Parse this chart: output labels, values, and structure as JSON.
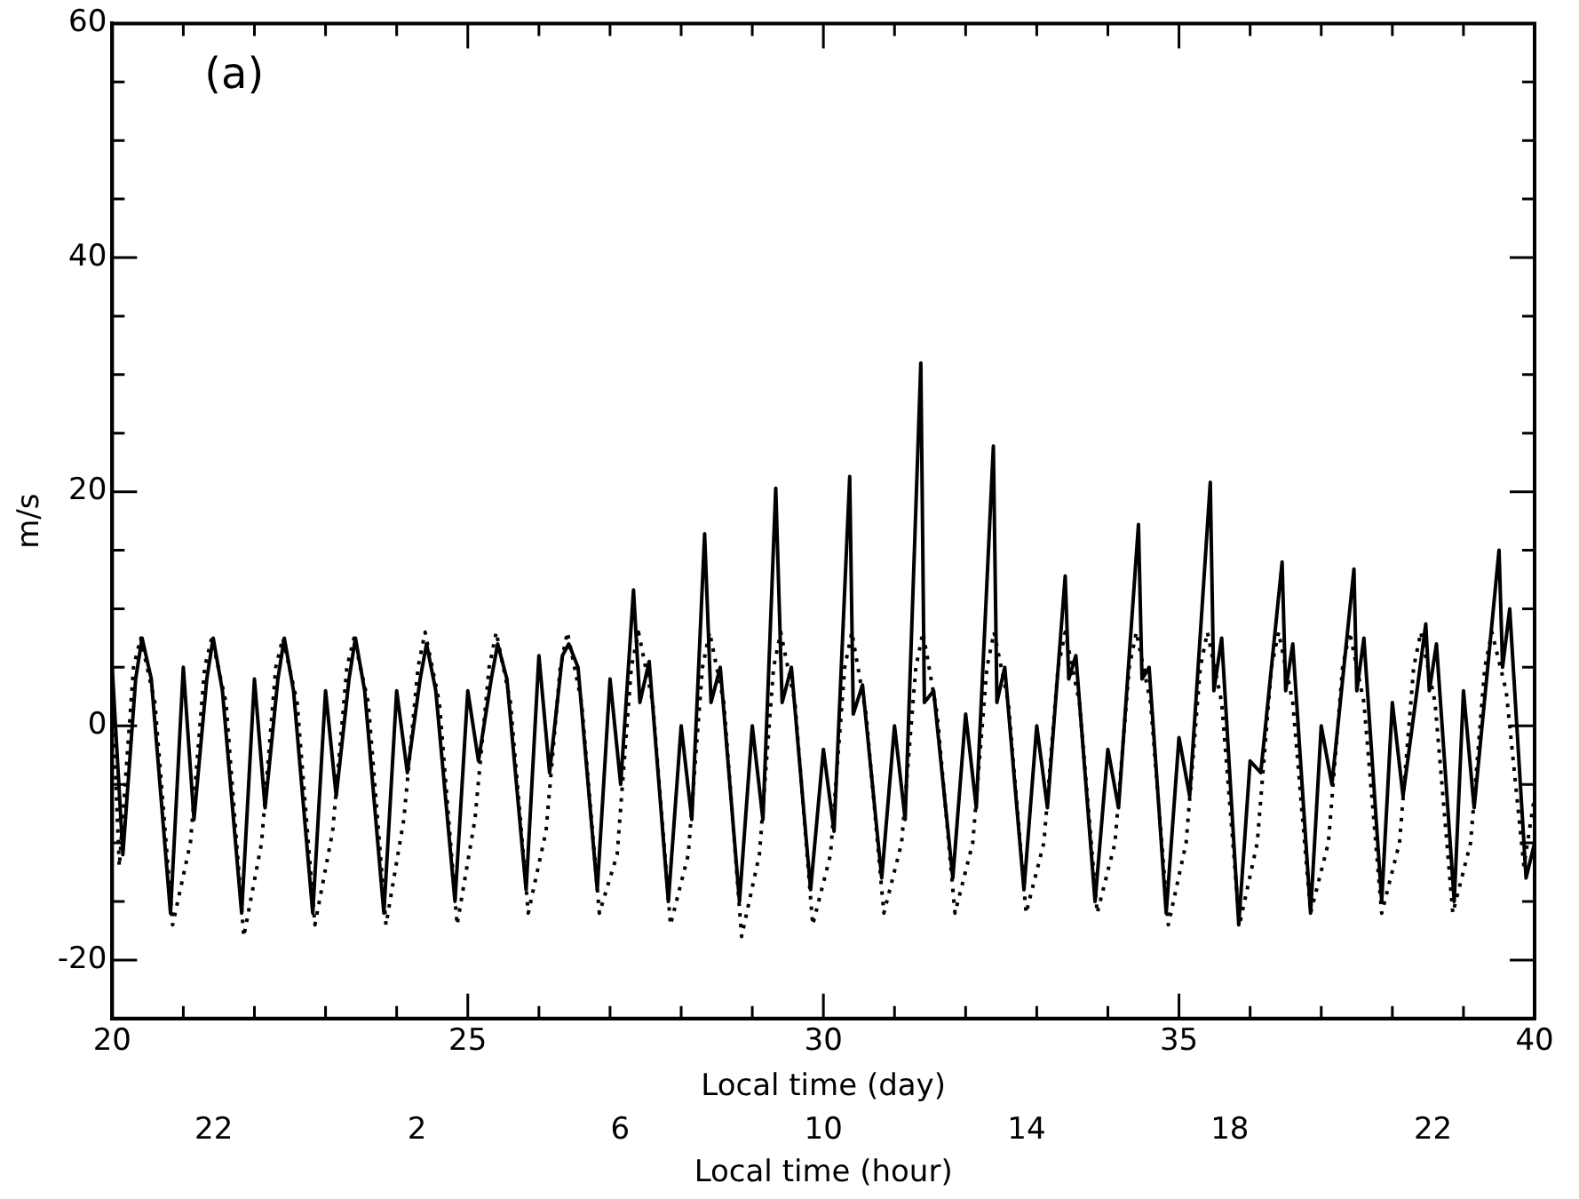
{
  "chart_data": {
    "type": "line",
    "xlabel": "Local time (day)",
    "ylabel": "m/s",
    "x2label": "Local time (hour)",
    "annotations": [
      "(a)",
      "22",
      "2",
      "6",
      "10",
      "14",
      "18",
      "22"
    ],
    "xlim": [
      20,
      40
    ],
    "xticks": [
      20,
      {
        "value": 21,
        "label": null
      },
      {
        "value": 22,
        "label": null
      },
      {
        "value": 23,
        "label": null
      },
      {
        "value": 24,
        "label": null
      },
      25,
      {
        "value": 26,
        "label": null
      },
      {
        "value": 27,
        "label": null
      },
      {
        "value": 28,
        "label": null
      },
      {
        "value": 29,
        "label": null
      },
      30,
      {
        "value": 31,
        "label": null
      },
      {
        "value": 32,
        "label": null
      },
      {
        "value": 33,
        "label": null
      },
      {
        "value": 34,
        "label": null
      },
      35,
      {
        "value": 36,
        "label": null
      },
      {
        "value": 37,
        "label": null
      },
      {
        "value": 38,
        "label": null
      },
      {
        "value": 39,
        "label": null
      },
      40
    ],
    "ylim": [
      -25,
      60
    ],
    "yticks": [
      {
        "value": -25,
        "label": null
      },
      -20,
      {
        "value": -15,
        "label": null
      },
      {
        "value": -10,
        "label": null
      },
      {
        "value": -5,
        "label": null
      },
      0,
      {
        "value": 5,
        "label": null
      },
      {
        "value": 10,
        "label": null
      },
      {
        "value": 15,
        "label": null
      },
      20,
      {
        "value": 25,
        "label": null
      },
      {
        "value": 30,
        "label": null
      },
      {
        "value": 35,
        "label": null
      },
      40,
      {
        "value": 45,
        "label": null
      },
      {
        "value": 50,
        "label": null
      },
      {
        "value": 55,
        "label": null
      },
      60
    ],
    "legend": false,
    "marker": "none",
    "series": [
      {
        "color": "#000000",
        "line_style": "solid",
        "x": [
          20,
          20.15,
          20.33,
          20.42,
          20.55,
          20.82,
          21,
          21.15,
          21.33,
          21.42,
          21.55,
          21.82,
          22,
          22.15,
          22.33,
          22.42,
          22.55,
          22.82,
          23,
          23.15,
          23.33,
          23.42,
          23.55,
          23.82,
          24,
          24.15,
          24.33,
          24.42,
          24.55,
          24.82,
          25,
          25.15,
          25.33,
          25.42,
          25.55,
          25.82,
          26,
          26.15,
          26.33,
          26.42,
          26.55,
          26.82,
          27,
          27.15,
          27.33,
          27.42,
          27.55,
          27.82,
          28,
          28.15,
          28.33,
          28.42,
          28.55,
          28.82,
          29,
          29.15,
          29.33,
          29.42,
          29.55,
          29.82,
          30,
          30.15,
          30.37,
          30.42,
          30.55,
          30.82,
          31,
          31.15,
          31.37,
          31.42,
          31.55,
          31.82,
          32,
          32.15,
          32.39,
          32.44,
          32.55,
          32.82,
          33,
          33.15,
          33.4,
          33.45,
          33.55,
          33.82,
          34,
          34.15,
          34.43,
          34.48,
          34.58,
          34.82,
          35,
          35.15,
          35.44,
          35.49,
          35.6,
          35.84,
          36,
          36.15,
          36.45,
          36.5,
          36.6,
          36.85,
          37,
          37.15,
          37.46,
          37.5,
          37.6,
          37.85,
          38,
          38.15,
          38.47,
          38.52,
          38.62,
          38.87,
          39,
          39.15,
          39.5,
          39.55,
          39.65,
          39.88,
          40
        ],
        "values": [
          5,
          -11,
          4,
          7.5,
          4,
          -16,
          5,
          -8,
          4,
          7.5,
          3,
          -16,
          4,
          -7,
          4,
          7.5,
          3,
          -16,
          3,
          -6,
          4,
          7.5,
          3,
          -16,
          3,
          -4,
          4,
          7,
          3,
          -15,
          3,
          -3,
          4,
          7,
          4,
          -14,
          6,
          -4,
          6,
          7,
          5,
          -14,
          4,
          -5,
          11.6,
          2,
          5.5,
          -15,
          0,
          -8,
          16.4,
          2,
          5,
          -15,
          0,
          -8,
          20.3,
          2,
          5,
          -14,
          -2,
          -9,
          21.3,
          1,
          3.5,
          -13,
          0,
          -8,
          31,
          2,
          3,
          -13,
          1,
          -7,
          23.9,
          2,
          5,
          -14,
          0,
          -7,
          12.8,
          4,
          6,
          -15,
          -2,
          -7,
          17.2,
          4,
          5,
          -16,
          -1,
          -6,
          20.8,
          3,
          7.5,
          -17,
          -3,
          -4,
          14,
          3,
          7,
          -16,
          0,
          -5,
          13.4,
          3,
          7.5,
          -15,
          2,
          -6,
          8.7,
          3,
          7,
          -15,
          3,
          -7,
          15,
          5,
          10,
          -13,
          -10
        ]
      },
      {
        "color": "#000000",
        "line_style": "dotted",
        "x": [
          20,
          20.1,
          20.3,
          20.4,
          20.6,
          20.85,
          21.1,
          21.3,
          21.4,
          21.6,
          21.85,
          22.1,
          22.3,
          22.4,
          22.6,
          22.85,
          23.1,
          23.3,
          23.4,
          23.6,
          23.85,
          24.1,
          24.3,
          24.4,
          24.6,
          24.85,
          25.1,
          25.3,
          25.4,
          25.6,
          25.85,
          26.1,
          26.3,
          26.4,
          26.6,
          26.85,
          27.1,
          27.3,
          27.4,
          27.6,
          27.85,
          28.1,
          28.3,
          28.4,
          28.6,
          28.85,
          29.1,
          29.3,
          29.4,
          29.6,
          29.85,
          30.1,
          30.3,
          30.4,
          30.6,
          30.85,
          31.1,
          31.3,
          31.4,
          31.6,
          31.85,
          32.1,
          32.3,
          32.4,
          32.6,
          32.85,
          33.1,
          33.3,
          33.4,
          33.6,
          33.85,
          34.1,
          34.3,
          34.4,
          34.6,
          34.85,
          35.1,
          35.3,
          35.4,
          35.6,
          35.85,
          36.1,
          36.3,
          36.4,
          36.6,
          36.85,
          37.1,
          37.3,
          37.4,
          37.6,
          37.85,
          38.1,
          38.3,
          38.4,
          38.6,
          38.85,
          39.1,
          39.3,
          39.4,
          39.6,
          39.85,
          40
        ],
        "values": [
          3,
          -12,
          5,
          7.5,
          2,
          -17,
          -10,
          5,
          7.5,
          2,
          -18,
          -10,
          5,
          7.5,
          2,
          -17,
          -9,
          5,
          7.5,
          2,
          -17,
          -8,
          5,
          8,
          2,
          -17,
          -8,
          5,
          8,
          2,
          -16,
          -9,
          5,
          8,
          2,
          -16,
          -11,
          5,
          8,
          2,
          -17,
          -11,
          5,
          8,
          2,
          -18,
          -11,
          5,
          8,
          2,
          -17,
          -11,
          5,
          8,
          1,
          -16,
          -10,
          5,
          8,
          1,
          -16,
          -10,
          5,
          8,
          2,
          -16,
          -10,
          5,
          8,
          2,
          -16,
          -10,
          5,
          8,
          2,
          -17,
          -10,
          5,
          8,
          2,
          -17,
          -10,
          5,
          8,
          2,
          -16,
          -10,
          5,
          8,
          2,
          -16,
          -10,
          5,
          8,
          2,
          -16,
          -10,
          5,
          8,
          3,
          -12,
          -6
        ]
      }
    ]
  }
}
